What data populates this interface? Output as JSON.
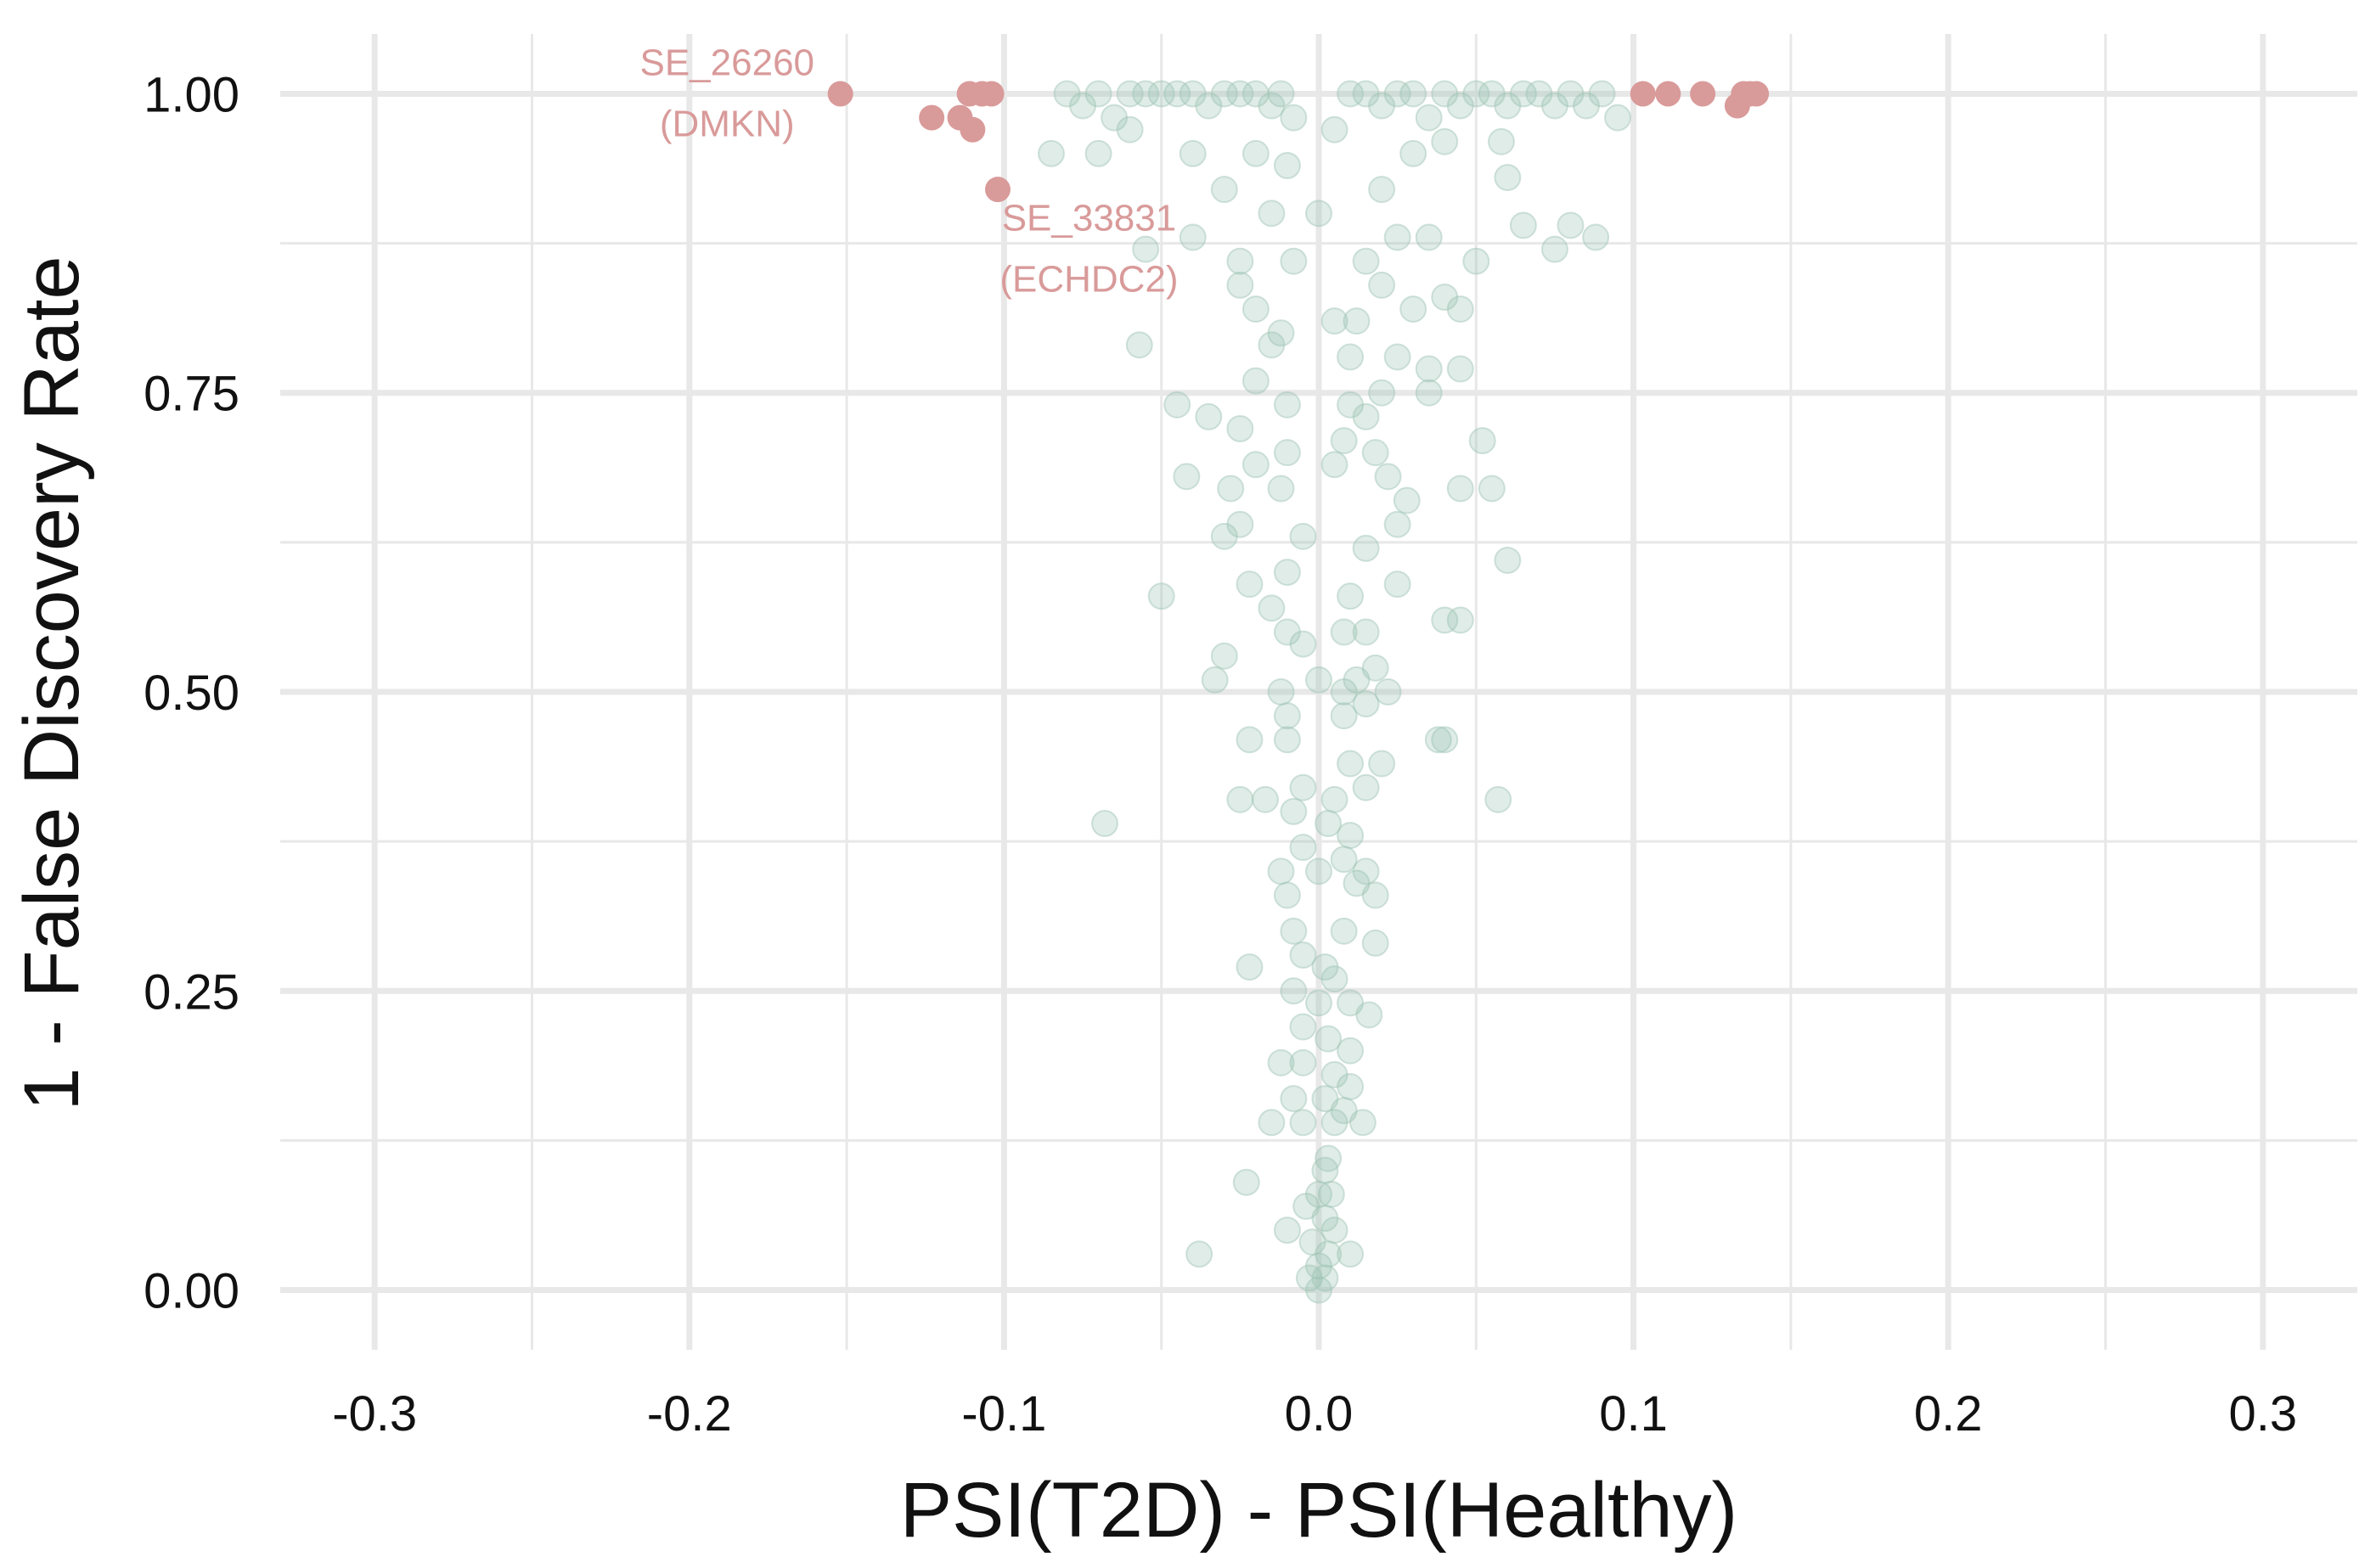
{
  "chart_data": {
    "type": "scatter",
    "title": "",
    "xlabel": "PSI(T2D) - PSI(Healthy)",
    "ylabel": "1 - False Discovery Rate",
    "xlim": [
      -0.33,
      0.33
    ],
    "ylim": [
      -0.05,
      1.05
    ],
    "x_ticks": [
      -0.3,
      -0.2,
      -0.1,
      0.0,
      0.1,
      0.2,
      0.3
    ],
    "x_tick_labels": [
      "-0.3",
      "-0.2",
      "-0.1",
      "0.0",
      "0.1",
      "0.2",
      "0.3"
    ],
    "y_ticks": [
      0.0,
      0.25,
      0.5,
      0.75,
      1.0
    ],
    "y_tick_labels": [
      "0.00",
      "0.25",
      "0.50",
      "0.75",
      "1.00"
    ],
    "grid": true,
    "legend": "none",
    "colors": {
      "significant": "#d99a9a",
      "not_significant": "#9dc4b4",
      "grid": "#e8e8e8",
      "text": "#111111"
    },
    "series": [
      {
        "key": "significant",
        "points": [
          [
            -0.152,
            1.0
          ],
          [
            -0.123,
            0.98
          ],
          [
            -0.114,
            0.98
          ],
          [
            -0.11,
            0.97
          ],
          [
            -0.111,
            1.0
          ],
          [
            -0.107,
            1.0
          ],
          [
            -0.104,
            1.0
          ],
          [
            -0.102,
            0.92
          ],
          [
            0.103,
            1.0
          ],
          [
            0.111,
            1.0
          ],
          [
            0.122,
            1.0
          ],
          [
            0.133,
            0.99
          ],
          [
            0.135,
            1.0
          ],
          [
            0.137,
            1.0
          ],
          [
            0.139,
            1.0
          ]
        ]
      },
      {
        "key": "not_significant",
        "points": [
          [
            -0.08,
            1.0
          ],
          [
            -0.075,
            0.99
          ],
          [
            -0.07,
            1.0
          ],
          [
            -0.065,
            0.98
          ],
          [
            -0.06,
            1.0
          ],
          [
            -0.055,
            1.0
          ],
          [
            -0.05,
            1.0
          ],
          [
            -0.045,
            1.0
          ],
          [
            -0.04,
            1.0
          ],
          [
            -0.035,
            0.99
          ],
          [
            -0.03,
            1.0
          ],
          [
            -0.025,
            1.0
          ],
          [
            -0.02,
            1.0
          ],
          [
            -0.015,
            0.99
          ],
          [
            -0.012,
            1.0
          ],
          [
            -0.008,
            0.98
          ],
          [
            0.01,
            1.0
          ],
          [
            0.015,
            1.0
          ],
          [
            0.02,
            0.99
          ],
          [
            0.025,
            1.0
          ],
          [
            0.03,
            1.0
          ],
          [
            0.035,
            0.98
          ],
          [
            0.04,
            1.0
          ],
          [
            0.045,
            0.99
          ],
          [
            0.05,
            1.0
          ],
          [
            0.055,
            1.0
          ],
          [
            0.06,
            0.99
          ],
          [
            0.065,
            1.0
          ],
          [
            0.07,
            1.0
          ],
          [
            0.075,
            0.99
          ],
          [
            0.08,
            1.0
          ],
          [
            0.085,
            0.99
          ],
          [
            0.09,
            1.0
          ],
          [
            0.095,
            0.98
          ],
          [
            -0.085,
            0.95
          ],
          [
            -0.07,
            0.95
          ],
          [
            -0.06,
            0.97
          ],
          [
            -0.04,
            0.95
          ],
          [
            -0.03,
            0.92
          ],
          [
            -0.02,
            0.95
          ],
          [
            -0.01,
            0.94
          ],
          [
            0.005,
            0.97
          ],
          [
            0.02,
            0.92
          ],
          [
            0.03,
            0.95
          ],
          [
            0.04,
            0.96
          ],
          [
            0.058,
            0.96
          ],
          [
            0.06,
            0.93
          ],
          [
            -0.055,
            0.87
          ],
          [
            -0.04,
            0.88
          ],
          [
            -0.025,
            0.86
          ],
          [
            -0.015,
            0.9
          ],
          [
            -0.008,
            0.86
          ],
          [
            0.0,
            0.9
          ],
          [
            0.015,
            0.86
          ],
          [
            0.025,
            0.88
          ],
          [
            0.035,
            0.88
          ],
          [
            0.05,
            0.86
          ],
          [
            0.065,
            0.89
          ],
          [
            0.075,
            0.87
          ],
          [
            0.08,
            0.89
          ],
          [
            0.088,
            0.88
          ],
          [
            -0.025,
            0.84
          ],
          [
            -0.02,
            0.82
          ],
          [
            -0.012,
            0.8
          ],
          [
            0.005,
            0.81
          ],
          [
            0.012,
            0.81
          ],
          [
            0.02,
            0.84
          ],
          [
            0.03,
            0.82
          ],
          [
            0.04,
            0.83
          ],
          [
            0.045,
            0.82
          ],
          [
            -0.057,
            0.79
          ],
          [
            0.01,
            0.78
          ],
          [
            0.025,
            0.78
          ],
          [
            0.035,
            0.77
          ],
          [
            0.045,
            0.77
          ],
          [
            -0.015,
            0.79
          ],
          [
            -0.045,
            0.74
          ],
          [
            -0.035,
            0.73
          ],
          [
            -0.02,
            0.76
          ],
          [
            -0.01,
            0.74
          ],
          [
            0.01,
            0.74
          ],
          [
            0.015,
            0.73
          ],
          [
            0.02,
            0.75
          ],
          [
            0.035,
            0.75
          ],
          [
            -0.025,
            0.72
          ],
          [
            0.008,
            0.71
          ],
          [
            -0.02,
            0.69
          ],
          [
            -0.01,
            0.7
          ],
          [
            0.005,
            0.69
          ],
          [
            0.018,
            0.7
          ],
          [
            0.022,
            0.68
          ],
          [
            -0.042,
            0.68
          ],
          [
            -0.028,
            0.67
          ],
          [
            -0.012,
            0.67
          ],
          [
            0.028,
            0.66
          ],
          [
            0.052,
            0.71
          ],
          [
            0.045,
            0.67
          ],
          [
            0.055,
            0.67
          ],
          [
            -0.025,
            0.64
          ],
          [
            -0.03,
            0.63
          ],
          [
            -0.005,
            0.63
          ],
          [
            0.015,
            0.62
          ],
          [
            0.025,
            0.64
          ],
          [
            0.06,
            0.61
          ],
          [
            -0.022,
            0.59
          ],
          [
            -0.01,
            0.6
          ],
          [
            0.01,
            0.58
          ],
          [
            0.025,
            0.59
          ],
          [
            -0.05,
            0.58
          ],
          [
            -0.015,
            0.57
          ],
          [
            -0.01,
            0.55
          ],
          [
            -0.005,
            0.54
          ],
          [
            0.008,
            0.55
          ],
          [
            0.015,
            0.55
          ],
          [
            0.04,
            0.56
          ],
          [
            0.045,
            0.56
          ],
          [
            -0.03,
            0.53
          ],
          [
            -0.033,
            0.51
          ],
          [
            -0.012,
            0.5
          ],
          [
            0.0,
            0.51
          ],
          [
            0.008,
            0.5
          ],
          [
            0.012,
            0.51
          ],
          [
            0.018,
            0.52
          ],
          [
            0.022,
            0.5
          ],
          [
            -0.01,
            0.48
          ],
          [
            0.008,
            0.48
          ],
          [
            0.015,
            0.49
          ],
          [
            -0.022,
            0.46
          ],
          [
            -0.01,
            0.46
          ],
          [
            0.01,
            0.44
          ],
          [
            0.02,
            0.44
          ],
          [
            0.038,
            0.46
          ],
          [
            0.04,
            0.46
          ],
          [
            -0.025,
            0.41
          ],
          [
            -0.017,
            0.41
          ],
          [
            -0.005,
            0.42
          ],
          [
            0.005,
            0.41
          ],
          [
            0.015,
            0.42
          ],
          [
            0.057,
            0.41
          ],
          [
            -0.068,
            0.39
          ],
          [
            -0.008,
            0.4
          ],
          [
            0.003,
            0.39
          ],
          [
            0.01,
            0.38
          ],
          [
            -0.005,
            0.37
          ],
          [
            0.008,
            0.36
          ],
          [
            0.015,
            0.35
          ],
          [
            -0.012,
            0.35
          ],
          [
            0.0,
            0.35
          ],
          [
            -0.01,
            0.33
          ],
          [
            0.012,
            0.34
          ],
          [
            0.018,
            0.33
          ],
          [
            -0.008,
            0.3
          ],
          [
            0.008,
            0.3
          ],
          [
            0.018,
            0.29
          ],
          [
            -0.005,
            0.28
          ],
          [
            0.002,
            0.27
          ],
          [
            -0.022,
            0.27
          ],
          [
            0.005,
            0.26
          ],
          [
            -0.008,
            0.25
          ],
          [
            0.0,
            0.24
          ],
          [
            0.01,
            0.24
          ],
          [
            0.016,
            0.23
          ],
          [
            -0.005,
            0.22
          ],
          [
            0.003,
            0.21
          ],
          [
            0.01,
            0.2
          ],
          [
            -0.012,
            0.19
          ],
          [
            -0.005,
            0.19
          ],
          [
            0.005,
            0.18
          ],
          [
            0.01,
            0.17
          ],
          [
            -0.008,
            0.16
          ],
          [
            0.002,
            0.16
          ],
          [
            0.008,
            0.15
          ],
          [
            -0.015,
            0.14
          ],
          [
            -0.005,
            0.14
          ],
          [
            0.005,
            0.14
          ],
          [
            0.014,
            0.14
          ],
          [
            0.003,
            0.11
          ],
          [
            0.002,
            0.1
          ],
          [
            -0.023,
            0.09
          ],
          [
            0.0,
            0.08
          ],
          [
            0.004,
            0.08
          ],
          [
            -0.004,
            0.07
          ],
          [
            0.002,
            0.06
          ],
          [
            -0.01,
            0.05
          ],
          [
            0.005,
            0.05
          ],
          [
            -0.002,
            0.04
          ],
          [
            0.003,
            0.03
          ],
          [
            -0.038,
            0.03
          ],
          [
            0.01,
            0.03
          ],
          [
            0.0,
            0.02
          ],
          [
            -0.003,
            0.01
          ],
          [
            0.002,
            0.01
          ],
          [
            0.0,
            0.0
          ]
        ]
      }
    ],
    "annotations": [
      {
        "lines": [
          "SE_26260",
          "(DMKN)"
        ],
        "x": -0.188,
        "y": 1.0
      },
      {
        "lines": [
          "SE_33831",
          "(ECHDC2)"
        ],
        "x": -0.073,
        "y": 0.87
      }
    ]
  }
}
